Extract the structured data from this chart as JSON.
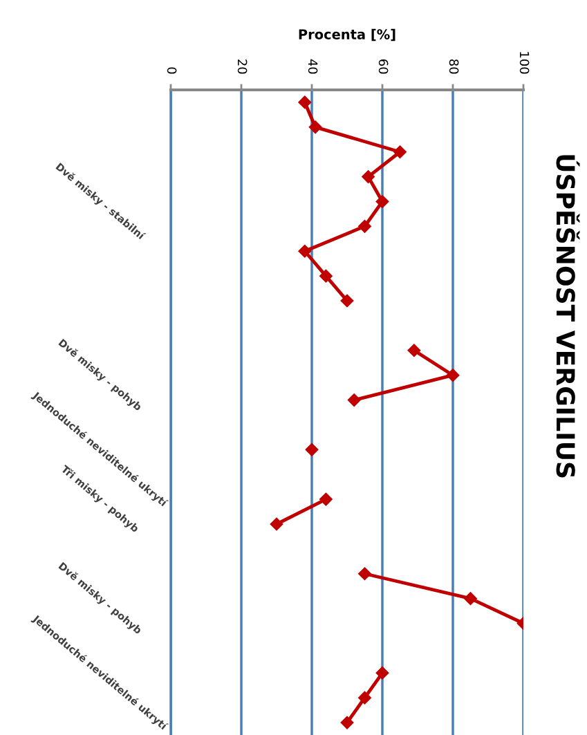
{
  "chart_data": {
    "type": "line",
    "orientation": "horizontal",
    "title": "ÚSPĚŠNOST VERGILIUS",
    "xlabel": "Procenta [%]",
    "categories": [
      null,
      null,
      null,
      null,
      "Dvě misky - stabilní",
      null,
      null,
      null,
      null,
      null,
      null,
      "Dvě misky - pohyb",
      null,
      null,
      "Jednoduché neviditelné ukrytí",
      null,
      "Tři misky - pohyb",
      null,
      null,
      null,
      "Dvě misky - pohyb",
      null,
      null,
      "Jednoduché neviditelné ukrytí",
      null,
      null
    ],
    "series": [
      {
        "color": "#c00000",
        "values": [
          38,
          41,
          65,
          56,
          60,
          55,
          38,
          44,
          50,
          null,
          69,
          80,
          52,
          null,
          40,
          null,
          44,
          30,
          null,
          55,
          85,
          100,
          null,
          60,
          55,
          50
        ]
      }
    ],
    "xlim": [
      0,
      100
    ],
    "xticks": [
      0,
      20,
      40,
      60,
      80,
      100
    ],
    "grid": "x",
    "marker": "diamond",
    "line_style": "solid"
  }
}
